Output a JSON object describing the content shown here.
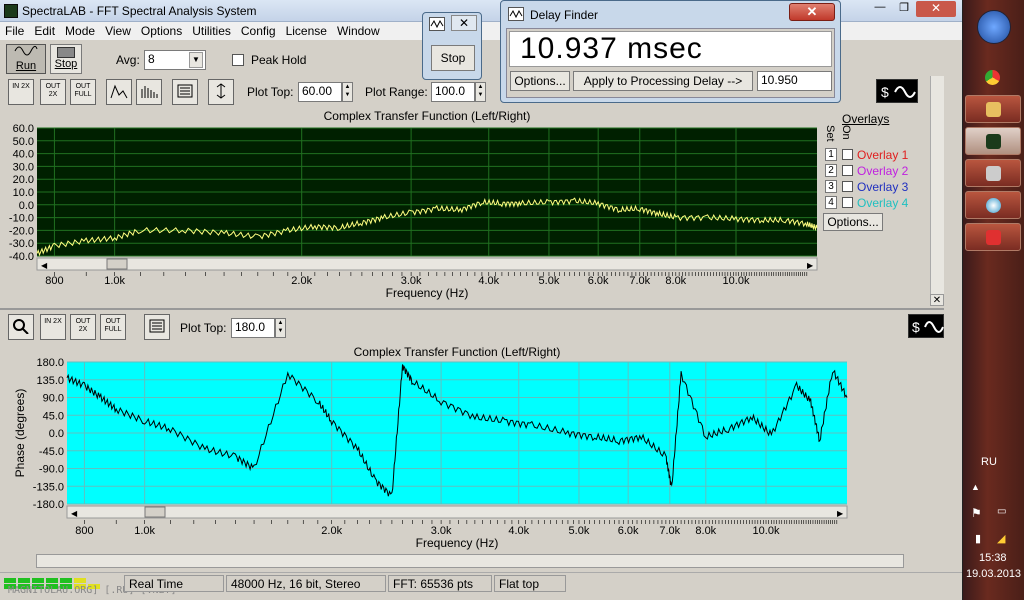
{
  "app": {
    "title": "SpectraLAB - FFT Spectral Analysis System"
  },
  "menu": [
    "File",
    "Edit",
    "Mode",
    "View",
    "Options",
    "Utilities",
    "Config",
    "License",
    "Window"
  ],
  "toolbar": {
    "run_label": "Run",
    "stop_label": "Stop",
    "avg_label": "Avg:",
    "avg_value": "8",
    "peak_hold_label": "Peak Hold",
    "peak_hold_checked": false
  },
  "stop_window": {
    "stop_label": "Stop"
  },
  "delay_finder": {
    "title": "Delay Finder",
    "reading": "10.937 msec",
    "options_label": "Options...",
    "apply_label": "Apply to Processing Delay -->",
    "delay_value": "10.950"
  },
  "plot1": {
    "plot_top_label": "Plot Top:",
    "plot_top_value": "60.00",
    "plot_range_label": "Plot Range:",
    "plot_range_value": "100.0",
    "overlays_label": "Overlays",
    "set_label": "Set",
    "on_label": "On",
    "options_label": "Options...",
    "icon_labels": [
      "IN 2X",
      "OUT 2X",
      "OUT FULL"
    ],
    "overlays": [
      {
        "num": "1",
        "name": "Overlay 1",
        "color": "#e02020"
      },
      {
        "num": "2",
        "name": "Overlay 2",
        "color": "#c020e0"
      },
      {
        "num": "3",
        "name": "Overlay 3",
        "color": "#2030c0"
      },
      {
        "num": "4",
        "name": "Overlay 4",
        "color": "#20c0c0"
      }
    ]
  },
  "plot2": {
    "plot_top_label": "Plot Top:",
    "plot_top_value": "180.0",
    "icon_labels": [
      "IN 2X",
      "OUT 2X",
      "OUT FULL"
    ]
  },
  "statusbar": {
    "mode": "Real Time",
    "format": "48000 Hz, 16 bit, Stereo",
    "fft": "FFT: 65536 pts",
    "window": "Flat top",
    "watermark": "MAGNITOLAU.ORG] [.RU] [.NET]"
  },
  "taskbar": {
    "lang": "RU",
    "time": "15:38",
    "date": "19.03.2013"
  },
  "colors": {
    "plot1_bg": "#002000",
    "plot1_grid": "#207020",
    "plot1_trace": "#ffff80",
    "plot2_bg": "#00ffff",
    "plot2_grid": "#60c0c0",
    "plot2_trace": "#000000"
  },
  "chart_data": [
    {
      "type": "line",
      "title": "Complex Transfer Function (Left/Right)",
      "xlabel": "Frequency (Hz)",
      "ylabel": "",
      "x_ticks": [
        "800",
        "1.0k",
        "2.0k",
        "3.0k",
        "4.0k",
        "5.0k",
        "6.0k",
        "7.0k",
        "8.0k",
        "10.0k"
      ],
      "y_ticks": [
        "60.0",
        "50.0",
        "40.0",
        "30.0",
        "20.0",
        "10.0",
        "0.0",
        "-10.0",
        "-20.0",
        "-30.0",
        "-40.0"
      ],
      "ylim": [
        -40,
        60
      ],
      "xscale": "log",
      "xlim": [
        750,
        13500
      ],
      "series": [
        {
          "x": [
            750,
            800,
            900,
            1000,
            1100,
            1300,
            1500,
            1700,
            1900,
            2100,
            2300,
            2500,
            2700,
            3000,
            3300,
            3600,
            3900,
            4200,
            4500,
            5000,
            5500,
            6000,
            6500,
            7000,
            7500,
            8000,
            9000,
            10000,
            11000,
            12000,
            13000,
            13500
          ],
          "values": [
            -38,
            -32,
            -28,
            -26,
            -20,
            -20,
            -22,
            -25,
            -20,
            -17,
            -18,
            -14,
            -10,
            -6,
            -3,
            -4,
            2,
            1,
            1,
            2,
            3,
            1,
            -4,
            -3,
            -7,
            -10,
            -10,
            -11,
            -12,
            -12,
            -15,
            -18
          ]
        }
      ]
    },
    {
      "type": "line",
      "title": "Complex Transfer Function (Left/Right)",
      "xlabel": "Frequency (Hz)",
      "ylabel": "Phase (degrees)",
      "x_ticks": [
        "800",
        "1.0k",
        "2.0k",
        "3.0k",
        "4.0k",
        "5.0k",
        "6.0k",
        "7.0k",
        "8.0k",
        "10.0k"
      ],
      "y_ticks": [
        "180.0",
        "135.0",
        "90.0",
        "45.0",
        "0.0",
        "-45.0",
        "-90.0",
        "-135.0",
        "-180.0"
      ],
      "ylim": [
        -180,
        180
      ],
      "xscale": "log",
      "xlim": [
        750,
        13500
      ],
      "series": [
        {
          "x": [
            750,
            800,
            850,
            900,
            1000,
            1100,
            1250,
            1400,
            1500,
            1700,
            1900,
            2000,
            2200,
            2350,
            2500,
            2600,
            2700,
            3000,
            3400,
            3800,
            4200,
            4800,
            5300,
            5800,
            6300,
            6900,
            7050,
            7300,
            8000,
            8700,
            9500,
            10200,
            11200,
            11800,
            12200,
            12800,
            13500
          ],
          "values": [
            140,
            120,
            90,
            60,
            30,
            10,
            -40,
            -60,
            -90,
            150,
            80,
            30,
            -40,
            -120,
            -160,
            170,
            130,
            80,
            40,
            30,
            20,
            0,
            -10,
            -20,
            -10,
            -60,
            -140,
            150,
            -10,
            10,
            40,
            -5,
            120,
            80,
            -20,
            160,
            90
          ]
        }
      ]
    }
  ]
}
